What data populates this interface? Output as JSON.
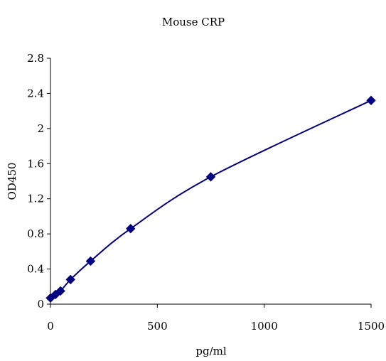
{
  "chart_data": {
    "type": "scatter",
    "title": "Mouse CRP",
    "xlabel": "pg/ml",
    "ylabel": "OD450",
    "xlim": [
      0,
      1500
    ],
    "ylim": [
      0,
      2.8
    ],
    "x_ticks": [
      "0",
      "500",
      "1000",
      "1500"
    ],
    "y_ticks": [
      "0",
      "0.4",
      "0.8",
      "1.2",
      "1.6",
      "2",
      "2.4",
      "2.8"
    ],
    "grid": false,
    "legend": "none",
    "series": [
      {
        "x": [
          0,
          23.4,
          46.9,
          93.8,
          187.5,
          375,
          750,
          1500
        ],
        "y": [
          0.07,
          0.11,
          0.15,
          0.28,
          0.49,
          0.86,
          1.45,
          2.32
        ],
        "marker": "diamond",
        "line": "smooth",
        "color": "#000080"
      }
    ]
  }
}
